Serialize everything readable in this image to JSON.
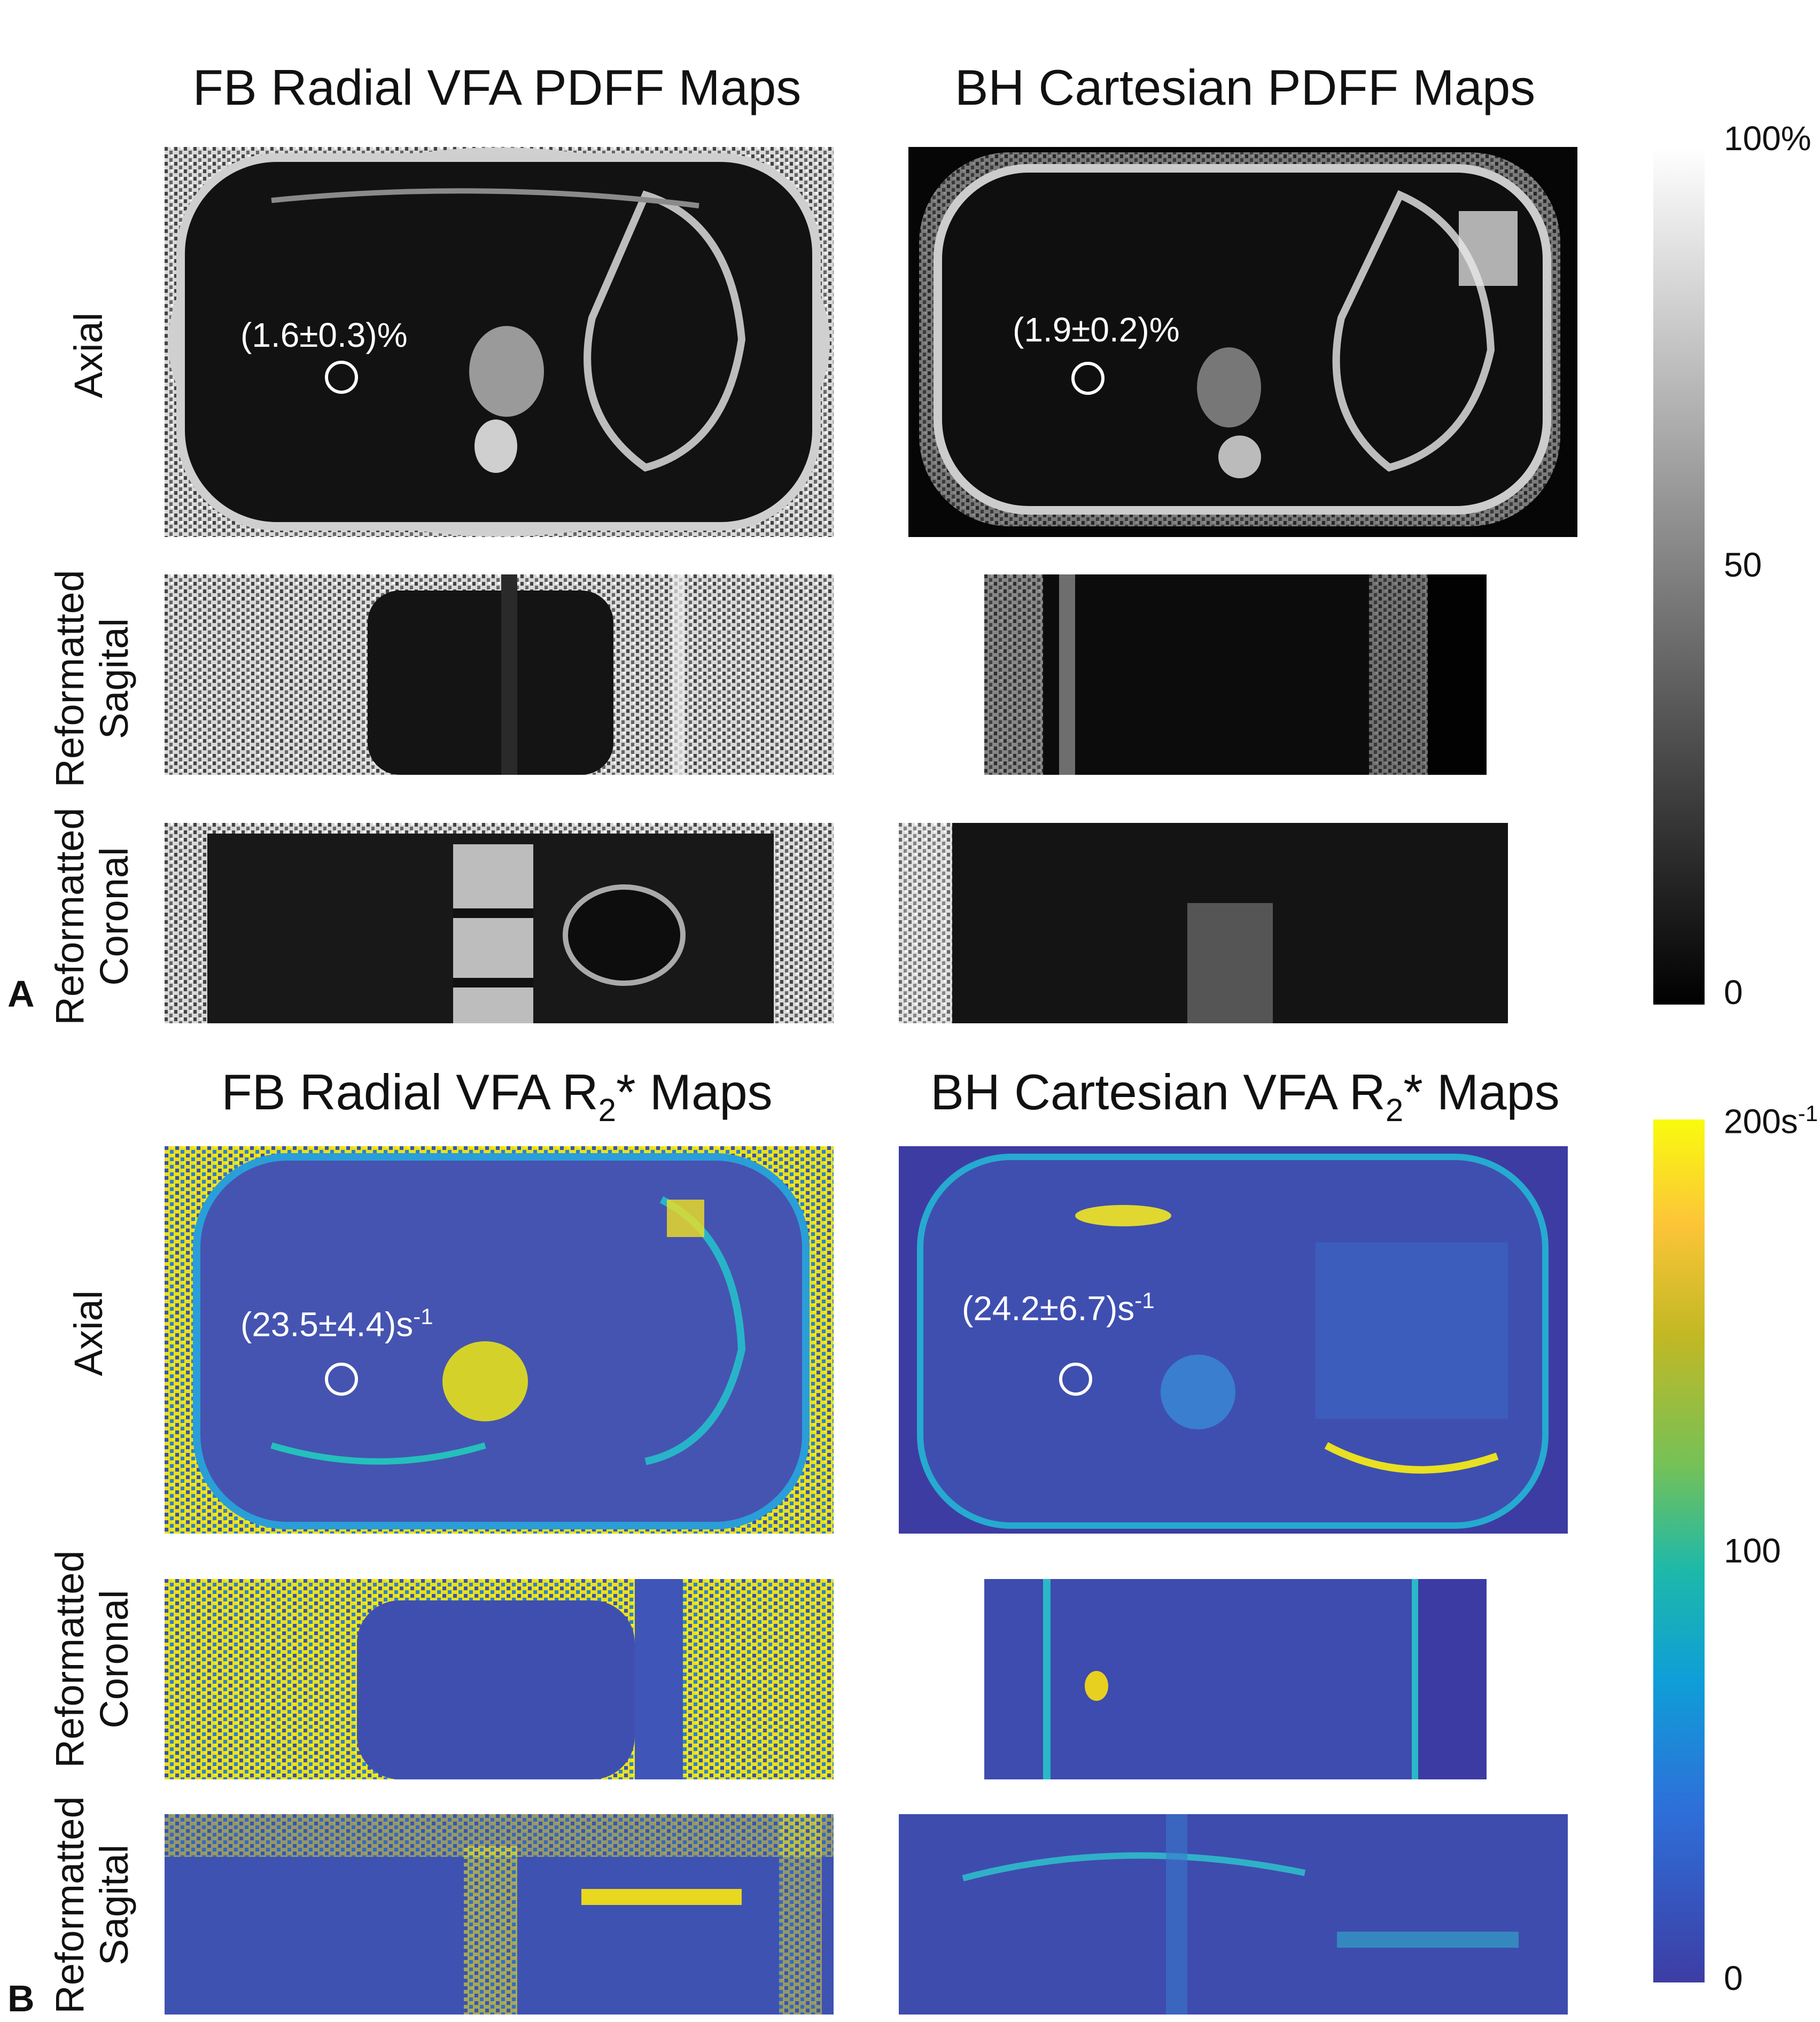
{
  "panel_a": {
    "letter": "A",
    "col1_title": "FB Radial VFA PDFF Maps",
    "col2_title": "BH Cartesian PDFF Maps",
    "row1_label": "Axial",
    "row2_label_line1": "Reformatted",
    "row2_label_line2": "Sagital",
    "row3_label_line1": "Reformatted",
    "row3_label_line2": "Coronal",
    "roi_left": "(1.6±0.3)%",
    "roi_right": "(1.9±0.2)%",
    "colorbar": {
      "top": "100%",
      "mid": "50",
      "bottom": "0",
      "colormap": "grayscale"
    }
  },
  "panel_b": {
    "letter": "B",
    "col1_title": "FB Radial VFA R",
    "col2_title": "BH Cartesian VFA R",
    "title_sub": "2",
    "title_suffix": "* Maps",
    "row1_label": "Axial",
    "row2_label_line1": "Reformatted",
    "row2_label_line2": "Coronal",
    "row3_label_line1": "Reformatted",
    "row3_label_line2": "Sagital",
    "roi_left": "(23.5±4.4)s",
    "roi_right": "(24.2±6.7)s",
    "roi_sup": "-1",
    "colorbar": {
      "top": "200s",
      "top_sup": "-1",
      "mid": "100",
      "bottom": "0",
      "colormap": "parula"
    }
  },
  "colors": {
    "gray_dark": "#0a0a0a",
    "gray_light": "#f0f0f0",
    "parula_low": "#3b3ea0",
    "parula_mid": "#18b8c0",
    "parula_high": "#f5e61e"
  }
}
